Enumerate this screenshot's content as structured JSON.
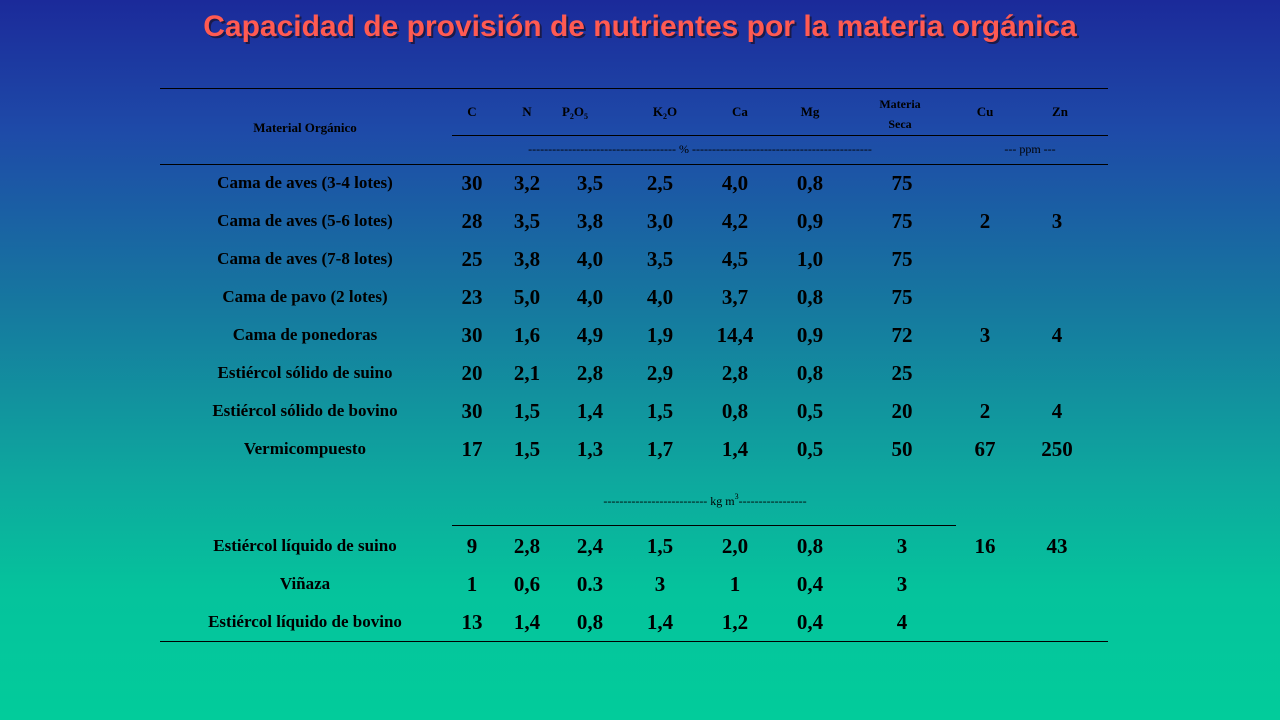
{
  "title": "Capacidad de provisión de nutrientes por la materia orgánica",
  "header": {
    "material": "Material Orgánico",
    "C": "C",
    "N": "N",
    "P": "P",
    "P_sub": "2",
    "P_o": "O",
    "P_o_sub": "5",
    "K": "K",
    "K_sub": "2",
    "K_o": "O",
    "Ca": "Ca",
    "Mg": "Mg",
    "ms_line1": "Materia",
    "ms_line2": "Seca",
    "Cu": "Cu",
    "Zn": "Zn"
  },
  "units": {
    "percent": "------------------------------------- % ---------------------------------------------",
    "ppm": "--- ppm ---",
    "kg": "-------------------------- kg m",
    "kg_sup": "3",
    "kg_tail": "-----------------"
  },
  "rows": [
    {
      "name": "Cama de aves (3-4 lotes)",
      "C": "30",
      "N": "3,2",
      "P": "3,5",
      "K": "2,5",
      "Ca": "4,0",
      "Mg": "0,8",
      "MS": "75",
      "Cu": "",
      "Zn": ""
    },
    {
      "name": "Cama de aves (5-6 lotes)",
      "C": "28",
      "N": "3,5",
      "P": "3,8",
      "K": "3,0",
      "Ca": "4,2",
      "Mg": "0,9",
      "MS": "75",
      "Cu": "2",
      "Zn": "3"
    },
    {
      "name": "Cama de aves (7-8 lotes)",
      "C": "25",
      "N": "3,8",
      "P": "4,0",
      "K": "3,5",
      "Ca": "4,5",
      "Mg": "1,0",
      "MS": "75",
      "Cu": "",
      "Zn": ""
    },
    {
      "name": "Cama de pavo (2 lotes)",
      "C": "23",
      "N": "5,0",
      "P": "4,0",
      "K": "4,0",
      "Ca": "3,7",
      "Mg": "0,8",
      "MS": "75",
      "Cu": "",
      "Zn": ""
    },
    {
      "name": "Cama de ponedoras",
      "C": "30",
      "N": "1,6",
      "P": "4,9",
      "K": "1,9",
      "Ca": "14,4",
      "Mg": "0,9",
      "MS": "72",
      "Cu": "3",
      "Zn": "4"
    },
    {
      "name": "Estiércol sólido de suino",
      "C": "20",
      "N": "2,1",
      "P": "2,8",
      "K": "2,9",
      "Ca": "2,8",
      "Mg": "0,8",
      "MS": "25",
      "Cu": "",
      "Zn": ""
    },
    {
      "name": "Estiércol sólido de bovino",
      "C": "30",
      "N": "1,5",
      "P": "1,4",
      "K": "1,5",
      "Ca": "0,8",
      "Mg": "0,5",
      "MS": "20",
      "Cu": "2",
      "Zn": "4"
    },
    {
      "name": "Vermicompuesto",
      "C": "17",
      "N": "1,5",
      "P": "1,3",
      "K": "1,7",
      "Ca": "1,4",
      "Mg": "0,5",
      "MS": "50",
      "Cu": "67",
      "Zn": "250"
    }
  ],
  "liquid_rows": [
    {
      "name": "Estiércol líquido de suino",
      "C": "9",
      "N": "2,8",
      "P": "2,4",
      "K": "1,5",
      "Ca": "2,0",
      "Mg": "0,8",
      "MS": "3",
      "Cu": "16",
      "Zn": "43"
    },
    {
      "name": "Viñaza",
      "C": "1",
      "N": "0,6",
      "P": "0.3",
      "K": "3",
      "Ca": "1",
      "Mg": "0,4",
      "MS": "3",
      "Cu": "",
      "Zn": ""
    },
    {
      "name": "Estiércol líquido de bovino",
      "C": "13",
      "N": "1,4",
      "P": "0,8",
      "K": "1,4",
      "Ca": "1,2",
      "Mg": "0,4",
      "MS": "4",
      "Cu": "",
      "Zn": ""
    }
  ]
}
